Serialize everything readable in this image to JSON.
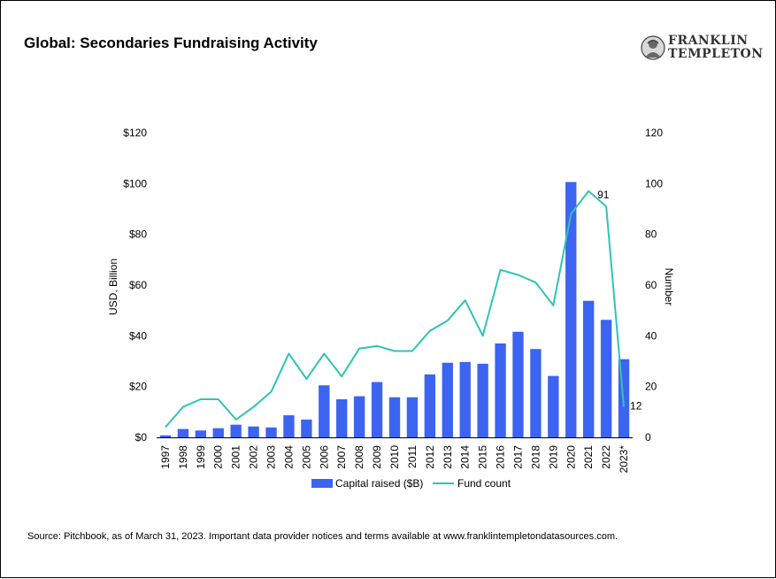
{
  "header": {
    "title": "Global: Secondaries Fundraising Activity",
    "logo_line1": "FRANKLIN",
    "logo_line2": "TEMPLETON"
  },
  "footer": {
    "source": "Source: Pitchbook, as of March 31, 2023. Important data provider notices and terms available at www.franklintempletondatasources.com."
  },
  "chart_data": {
    "type": "bar",
    "title": "Global: Secondaries Fundraising Activity",
    "categories": [
      "1997",
      "1998",
      "1999",
      "2000",
      "2001",
      "2002",
      "2003",
      "2004",
      "2005",
      "2006",
      "2007",
      "2008",
      "2009",
      "2010",
      "2011",
      "2012",
      "2013",
      "2014",
      "2015",
      "2016",
      "2017",
      "2018",
      "2019",
      "2020",
      "2021",
      "2022",
      "2023*"
    ],
    "series": [
      {
        "name": "Capital raised ($B)",
        "type": "bar",
        "axis": "left",
        "color": "#3c64f0",
        "values": [
          0.8,
          3.3,
          2.7,
          3.6,
          5.0,
          4.3,
          3.9,
          8.7,
          7.0,
          20.5,
          15.0,
          16.2,
          21.8,
          15.8,
          15.8,
          24.8,
          29.4,
          29.7,
          29.0,
          37.0,
          41.6,
          34.8,
          24.2,
          100.6,
          53.8,
          46.3,
          30.8
        ]
      },
      {
        "name": "Fund count",
        "type": "line",
        "axis": "right",
        "color": "#2ec4b6",
        "values": [
          4,
          12,
          15,
          15,
          7,
          12,
          18,
          33,
          23,
          33,
          24,
          35,
          36,
          34,
          34,
          42,
          46,
          54,
          40,
          66,
          64,
          61,
          52,
          88,
          97,
          91,
          12
        ]
      }
    ],
    "y_left": {
      "label": "USD, Billion",
      "ylim": [
        0,
        120
      ],
      "ticks": [
        0,
        20,
        40,
        60,
        80,
        100,
        120
      ],
      "tick_labels": [
        "$0",
        "$20",
        "$40",
        "$60",
        "$80",
        "$100",
        "$120"
      ]
    },
    "y_right": {
      "label": "Number",
      "ylim": [
        0,
        120
      ],
      "ticks": [
        0,
        20,
        40,
        60,
        80,
        100,
        120
      ],
      "tick_labels": [
        "0",
        "20",
        "40",
        "60",
        "80",
        "100",
        "120"
      ]
    },
    "annotations": [
      {
        "series": "Fund count",
        "category": "2022",
        "text": "91"
      },
      {
        "series": "Fund count",
        "category": "2023*",
        "text": "12"
      }
    ],
    "grid": false,
    "legend_position": "bottom"
  }
}
